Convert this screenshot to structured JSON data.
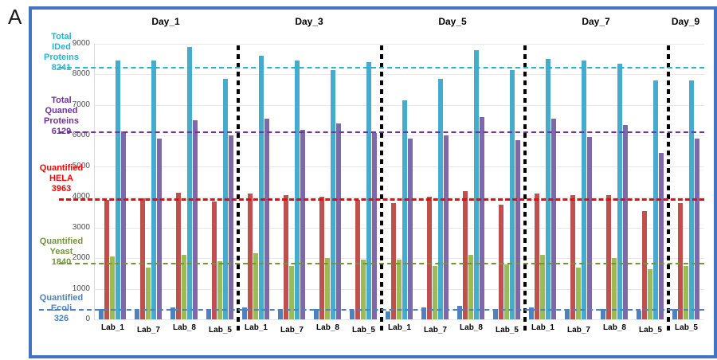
{
  "figure_label": "A",
  "chart_data": {
    "type": "bar",
    "title": "",
    "days": [
      {
        "label": "Day_1",
        "labs": [
          "Lab_1",
          "Lab_7",
          "Lab_8",
          "Lab_5"
        ]
      },
      {
        "label": "Day_3",
        "labs": [
          "Lab_1",
          "Lab_7",
          "Lab_8",
          "Lab_5"
        ]
      },
      {
        "label": "Day_5",
        "labs": [
          "Lab_1",
          "Lab_7",
          "Lab_8",
          "Lab_5"
        ]
      },
      {
        "label": "Day_7",
        "labs": [
          "Lab_1",
          "Lab_7",
          "Lab_8",
          "Lab_5"
        ]
      },
      {
        "label": "Day_9",
        "labs": [
          "Lab_5"
        ]
      }
    ],
    "series": [
      {
        "name": "Quantified Ecoli",
        "color": "#4f81bd",
        "values": [
          350,
          300,
          400,
          350,
          400,
          350,
          350,
          300,
          250,
          400,
          450,
          350,
          400,
          350,
          350,
          300,
          350
        ]
      },
      {
        "name": "Quantified HELA",
        "color": "#c0504d",
        "values": [
          3900,
          3950,
          4150,
          3850,
          4100,
          4050,
          4000,
          3900,
          3800,
          4000,
          4200,
          3750,
          4100,
          4050,
          4050,
          3550,
          3800
        ]
      },
      {
        "name": "Quantified Yeast",
        "color": "#9bbb59",
        "values": [
          2050,
          1700,
          2100,
          1900,
          2150,
          1750,
          2000,
          1950,
          1950,
          1750,
          2100,
          1800,
          2100,
          1700,
          2000,
          1650,
          1750
        ]
      },
      {
        "name": "Total IDed Proteins",
        "color": "#45accd",
        "values": [
          8450,
          8450,
          8900,
          7850,
          8600,
          8450,
          8150,
          8400,
          7150,
          7850,
          8800,
          8150,
          8500,
          8450,
          8350,
          7800,
          7800
        ]
      },
      {
        "name": "Total Quaned Proteins",
        "color": "#7e69a8",
        "values": [
          6150,
          5900,
          6500,
          6000,
          6550,
          6200,
          6400,
          6100,
          5900,
          6000,
          6600,
          5850,
          6550,
          5950,
          6350,
          5450,
          5900
        ]
      }
    ],
    "reference_lines": [
      {
        "label_lines": [
          "Total",
          "IDed",
          "Proteins",
          "8241"
        ],
        "value": 8241,
        "color": "#22b5cd"
      },
      {
        "label_lines": [
          "Total",
          "Quaned",
          "Proteins",
          "6129"
        ],
        "value": 6129,
        "color": "#7030a0"
      },
      {
        "label_lines": [
          "Quantified",
          "HELA",
          "3963"
        ],
        "value": 3963,
        "color": "#ff0000"
      },
      {
        "label_lines": [
          "Quantified",
          "Yeast",
          "1840"
        ],
        "value": 1840,
        "color": "#76933c"
      },
      {
        "label_lines": [
          "Quantified",
          "Ecoli",
          "326"
        ],
        "value": 326,
        "color": "#4f81bd"
      }
    ],
    "y_axis": {
      "min": 0,
      "max": 9000,
      "step": 1000,
      "ticks": [
        "0",
        "1000",
        "2000",
        "3000",
        "4000",
        "5000",
        "6000",
        "7000",
        "8000",
        "9000"
      ],
      "grid": true
    },
    "legend_position": "left"
  }
}
